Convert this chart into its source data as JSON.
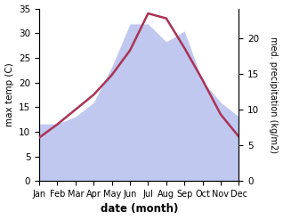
{
  "months": [
    "Jan",
    "Feb",
    "Mar",
    "Apr",
    "May",
    "Jun",
    "Jul",
    "Aug",
    "Sep",
    "Oct",
    "Nov",
    "Dec"
  ],
  "temp": [
    8.8,
    11.5,
    14.5,
    17.5,
    21.5,
    26.5,
    34.0,
    33.0,
    27.0,
    20.5,
    13.5,
    9.0
  ],
  "precip": [
    8.0,
    8.0,
    9.0,
    11.0,
    16.0,
    22.0,
    22.0,
    19.5,
    21.0,
    14.0,
    11.0,
    9.0
  ],
  "temp_color": "#aa3355",
  "precip_fill_color": "#c0c8f0",
  "precip_edge_color": "#b0b8e8",
  "left_ylim": [
    0,
    35
  ],
  "right_ylim": [
    0,
    24.166
  ],
  "left_yticks": [
    0,
    5,
    10,
    15,
    20,
    25,
    30,
    35
  ],
  "right_yticks": [
    0,
    5,
    10,
    15,
    20
  ],
  "xlabel": "date (month)",
  "ylabel_left": "max temp (C)",
  "ylabel_right": "med. precipitation (kg/m2)",
  "figsize": [
    3.18,
    2.47
  ],
  "dpi": 100
}
